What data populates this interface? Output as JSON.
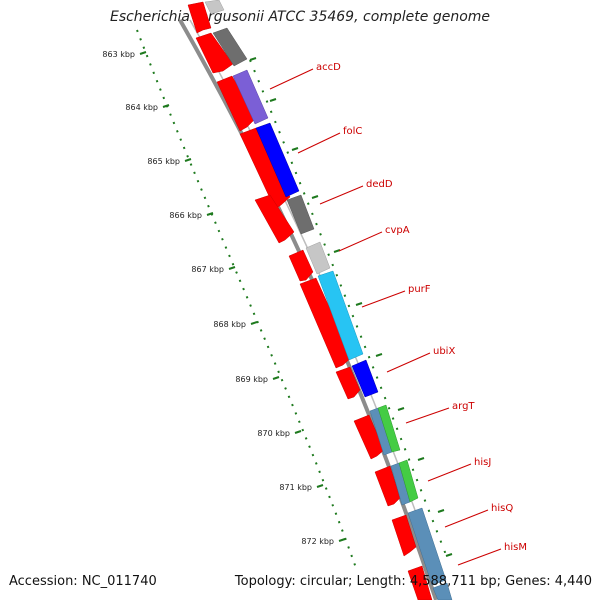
{
  "header": {
    "title": "Escherichia fergusonii ATCC 35469, complete genome"
  },
  "footer": {
    "accession": "Accession: NC_011740",
    "topology": "Topology: circular; Length: 4,588,711 bp; Genes: 4,440"
  },
  "ruler": {
    "ticks": [
      "863 kbp",
      "864 kbp",
      "865 kbp",
      "866 kbp",
      "867 kbp",
      "868 kbp",
      "869 kbp",
      "870 kbp",
      "871 kbp",
      "872 kbp"
    ]
  },
  "genes": [
    {
      "name": "accD"
    },
    {
      "name": "folC"
    },
    {
      "name": "dedD"
    },
    {
      "name": "cvpA"
    },
    {
      "name": "purF"
    },
    {
      "name": "ubiX"
    },
    {
      "name": "argT"
    },
    {
      "name": "hisJ"
    },
    {
      "name": "hisQ"
    },
    {
      "name": "hisM"
    }
  ],
  "colors": {
    "cds": "#ff0000",
    "backbone": "#8c8c8c",
    "ruler_dots": "#1e7a1e",
    "label": "#cc0000",
    "feature_gray": "#6e6e6e",
    "feature_purple": "#7b5fd6",
    "feature_blue": "#0000ff",
    "feature_lightgray": "#c6c6c6",
    "feature_cyan": "#27c4f3",
    "feature_green": "#44cc44",
    "feature_steel": "#5b8fb8"
  }
}
